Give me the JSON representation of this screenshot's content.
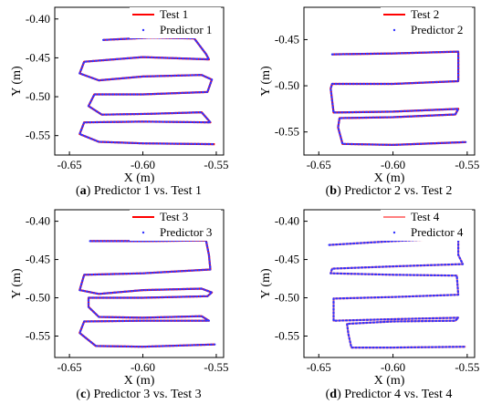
{
  "chart_data": [
    {
      "type": "line",
      "caption": {
        "letter": "a",
        "text": " Predictor 1 vs. Test 1"
      },
      "xlabel": "X  (m)",
      "ylabel": "Y  (m)",
      "xlim": [
        -0.66,
        -0.545
      ],
      "ylim": [
        -0.575,
        -0.385
      ],
      "xticks": [
        "-0.65",
        "-0.60",
        "-0.55"
      ],
      "xtick_values": [
        -0.65,
        -0.6,
        -0.55
      ],
      "yticks": [
        "-0.40",
        "-0.45",
        "-0.50",
        "-0.55"
      ],
      "ytick_values": [
        -0.4,
        -0.45,
        -0.5,
        -0.55
      ],
      "legend_position": "top-right",
      "series": [
        {
          "name": "Test 1",
          "style": "solid-line",
          "color": "#ff0000"
        },
        {
          "name": "Predictor 1",
          "style": "dotted-markers",
          "color": "#3333ff"
        }
      ],
      "path": [
        [
          -0.627,
          -0.427
        ],
        [
          -0.595,
          -0.424
        ],
        [
          -0.565,
          -0.425
        ],
        [
          -0.557,
          -0.445
        ],
        [
          -0.555,
          -0.452
        ],
        [
          -0.6,
          -0.449
        ],
        [
          -0.64,
          -0.455
        ],
        [
          -0.643,
          -0.47
        ],
        [
          -0.63,
          -0.479
        ],
        [
          -0.6,
          -0.474
        ],
        [
          -0.56,
          -0.472
        ],
        [
          -0.553,
          -0.478
        ],
        [
          -0.556,
          -0.494
        ],
        [
          -0.6,
          -0.497
        ],
        [
          -0.633,
          -0.497
        ],
        [
          -0.637,
          -0.512
        ],
        [
          -0.628,
          -0.523
        ],
        [
          -0.595,
          -0.522
        ],
        [
          -0.56,
          -0.52
        ],
        [
          -0.554,
          -0.533
        ],
        [
          -0.6,
          -0.532
        ],
        [
          -0.64,
          -0.533
        ],
        [
          -0.643,
          -0.548
        ],
        [
          -0.63,
          -0.558
        ],
        [
          -0.6,
          -0.56
        ],
        [
          -0.551,
          -0.561
        ]
      ]
    },
    {
      "type": "line",
      "caption": {
        "letter": "b",
        "text": " Predictor 2 vs. Test 2"
      },
      "xlabel": "X  (m)",
      "ylabel": "Y  (m)",
      "xlim": [
        -0.66,
        -0.545
      ],
      "ylim": [
        -0.575,
        -0.415
      ],
      "xticks": [
        "-0.65",
        "-0.60",
        "-0.55"
      ],
      "xtick_values": [
        -0.65,
        -0.6,
        -0.55
      ],
      "yticks": [
        "-0.45",
        "-0.50",
        "-0.55"
      ],
      "ytick_values": [
        -0.45,
        -0.5,
        -0.55
      ],
      "legend_position": "top-right",
      "series": [
        {
          "name": "Test 2",
          "style": "solid-line",
          "color": "#ff0000"
        },
        {
          "name": "Predictor 2",
          "style": "dotted-markers",
          "color": "#3333ff"
        }
      ],
      "path": [
        [
          -0.641,
          -0.466
        ],
        [
          -0.6,
          -0.465
        ],
        [
          -0.556,
          -0.463
        ],
        [
          -0.556,
          -0.495
        ],
        [
          -0.6,
          -0.498
        ],
        [
          -0.641,
          -0.498
        ],
        [
          -0.642,
          -0.503
        ],
        [
          -0.64,
          -0.529
        ],
        [
          -0.6,
          -0.528
        ],
        [
          -0.556,
          -0.525
        ],
        [
          -0.558,
          -0.531
        ],
        [
          -0.6,
          -0.534
        ],
        [
          -0.636,
          -0.535
        ],
        [
          -0.637,
          -0.545
        ],
        [
          -0.634,
          -0.563
        ],
        [
          -0.6,
          -0.564
        ],
        [
          -0.551,
          -0.561
        ]
      ]
    },
    {
      "type": "line",
      "caption": {
        "letter": "c",
        "text": " Predictor 3 vs. Test 3"
      },
      "xlabel": "X  (m)",
      "ylabel": "Y  (m)",
      "xlim": [
        -0.66,
        -0.545
      ],
      "ylim": [
        -0.578,
        -0.385
      ],
      "xticks": [
        "-0.65",
        "-0.60",
        "-0.55"
      ],
      "xtick_values": [
        -0.65,
        -0.6,
        -0.55
      ],
      "yticks": [
        "-0.40",
        "-0.45",
        "-0.50",
        "-0.55"
      ],
      "ytick_values": [
        -0.4,
        -0.45,
        -0.5,
        -0.55
      ],
      "legend_position": "top-right",
      "series": [
        {
          "name": "Test 3",
          "style": "solid-line",
          "color": "#ff0000"
        },
        {
          "name": "Predictor 3",
          "style": "dotted-markers",
          "color": "#3333ff"
        }
      ],
      "path": [
        [
          -0.636,
          -0.426
        ],
        [
          -0.6,
          -0.426
        ],
        [
          -0.557,
          -0.425
        ],
        [
          -0.555,
          -0.444
        ],
        [
          -0.554,
          -0.463
        ],
        [
          -0.6,
          -0.468
        ],
        [
          -0.64,
          -0.47
        ],
        [
          -0.643,
          -0.49
        ],
        [
          -0.63,
          -0.495
        ],
        [
          -0.6,
          -0.49
        ],
        [
          -0.56,
          -0.488
        ],
        [
          -0.553,
          -0.493
        ],
        [
          -0.556,
          -0.498
        ],
        [
          -0.6,
          -0.5
        ],
        [
          -0.637,
          -0.5
        ],
        [
          -0.637,
          -0.512
        ],
        [
          -0.63,
          -0.525
        ],
        [
          -0.6,
          -0.526
        ],
        [
          -0.56,
          -0.524
        ],
        [
          -0.555,
          -0.53
        ],
        [
          -0.6,
          -0.53
        ],
        [
          -0.64,
          -0.531
        ],
        [
          -0.643,
          -0.546
        ],
        [
          -0.632,
          -0.563
        ],
        [
          -0.6,
          -0.564
        ],
        [
          -0.551,
          -0.561
        ]
      ]
    },
    {
      "type": "line",
      "caption": {
        "letter": "d",
        "text": " Predictor 4 vs. Test 4"
      },
      "xlabel": "X  (m)",
      "ylabel": "Y  (m)",
      "xlim": [
        -0.66,
        -0.545
      ],
      "ylim": [
        -0.578,
        -0.385
      ],
      "xticks": [
        "-0.65",
        "-0.60",
        "-0.55"
      ],
      "xtick_values": [
        -0.65,
        -0.6,
        -0.55
      ],
      "yticks": [
        "-0.40",
        "-0.45",
        "-0.50",
        "-0.55"
      ],
      "ytick_values": [
        -0.4,
        -0.45,
        -0.5,
        -0.55
      ],
      "legend_position": "top-right",
      "series": [
        {
          "name": "Test 4",
          "style": "solid-line",
          "color": "#ff8080"
        },
        {
          "name": "Predictor 4",
          "style": "dotted-markers",
          "color": "#3333ff"
        }
      ],
      "path": [
        [
          -0.643,
          -0.431
        ],
        [
          -0.6,
          -0.426
        ],
        [
          -0.556,
          -0.422
        ],
        [
          -0.556,
          -0.444
        ],
        [
          -0.553,
          -0.456
        ],
        [
          -0.6,
          -0.459
        ],
        [
          -0.641,
          -0.462
        ],
        [
          -0.642,
          -0.468
        ],
        [
          -0.6,
          -0.47
        ],
        [
          -0.557,
          -0.471
        ],
        [
          -0.556,
          -0.496
        ],
        [
          -0.6,
          -0.499
        ],
        [
          -0.64,
          -0.501
        ],
        [
          -0.64,
          -0.53
        ],
        [
          -0.6,
          -0.528
        ],
        [
          -0.556,
          -0.526
        ],
        [
          -0.558,
          -0.53
        ],
        [
          -0.6,
          -0.531
        ],
        [
          -0.631,
          -0.534
        ],
        [
          -0.63,
          -0.548
        ],
        [
          -0.628,
          -0.565
        ],
        [
          -0.6,
          -0.565
        ],
        [
          -0.551,
          -0.564
        ]
      ]
    }
  ]
}
